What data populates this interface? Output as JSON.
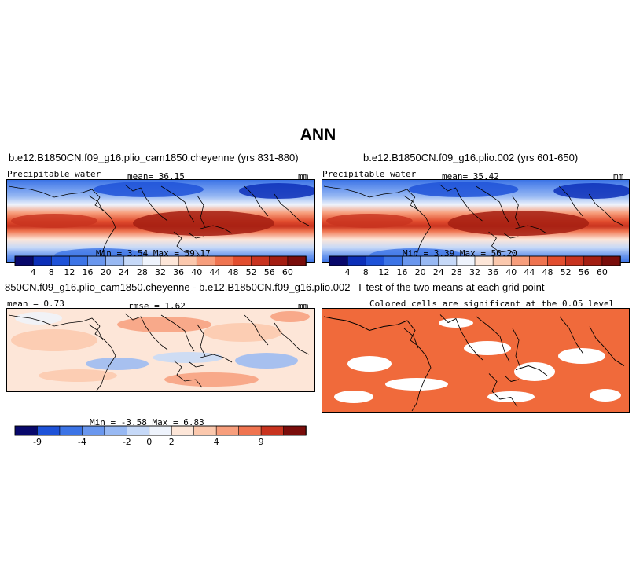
{
  "figure": {
    "title": "ANN"
  },
  "panels": [
    {
      "title": "b.e12.B1850CN.f09_g16.plio_cam1850.cheyenne (yrs 831-880)",
      "left_label": "Precipitable water",
      "center_label": "mean=  36.15",
      "units": "mm",
      "stats": "Min =    3.54  Max =   59.17"
    },
    {
      "title": "b.e12.B1850CN.f09_g16.plio.002 (yrs 601-650)",
      "left_label": "Precipitable water",
      "center_label": "mean=  35.42",
      "units": "mm",
      "stats": "Min =    3.39  Max =   56.20"
    },
    {
      "title": "850CN.f09_g16.plio_cam1850.cheyenne - b.e12.B1850CN.f09_g16.plio.002",
      "left_label": "mean =   0.73",
      "center_label": "rmse =   1.62",
      "units": "mm",
      "stats": "Min =   -3.58  Max =    6.83"
    },
    {
      "title": "T-test of the two means at each grid point",
      "subtitle": "Colored cells are significant at the 0.05 level"
    }
  ],
  "chart_data": [
    {
      "type": "heatmap",
      "title": "b.e12.B1850CN.f09_g16.plio_cam1850.cheyenne (yrs 831-880)",
      "variable": "Precipitable water",
      "units": "mm",
      "mean": 36.15,
      "min": 3.54,
      "max": 59.17,
      "colorbar_levels": [
        "4",
        "8",
        "12",
        "16",
        "20",
        "24",
        "28",
        "32",
        "36",
        "40",
        "44",
        "48",
        "52",
        "56",
        "60"
      ]
    },
    {
      "type": "heatmap",
      "title": "b.e12.B1850CN.f09_g16.plio.002 (yrs 601-650)",
      "variable": "Precipitable water",
      "units": "mm",
      "mean": 35.42,
      "min": 3.39,
      "max": 56.2,
      "colorbar_levels": [
        "4",
        "8",
        "12",
        "16",
        "20",
        "24",
        "28",
        "32",
        "36",
        "40",
        "44",
        "48",
        "52",
        "56",
        "60"
      ]
    },
    {
      "type": "heatmap",
      "title": "850CN.f09_g16.plio_cam1850.cheyenne - b.e12.B1850CN.f09_g16.plio.002",
      "units": "mm",
      "mean": 0.73,
      "rmse": 1.62,
      "min": -3.58,
      "max": 6.83,
      "colorbar_levels": [
        "-9",
        "-4",
        "-2",
        "0",
        "2",
        "4",
        "9"
      ]
    },
    {
      "type": "heatmap",
      "title": "T-test of the two means at each grid point",
      "subtitle": "Colored cells are significant at the 0.05 level",
      "significance_level": 0.05
    }
  ],
  "colorbars": {
    "pw": {
      "colors": [
        "#08086b",
        "#0c2fb8",
        "#1e52d8",
        "#3c74e6",
        "#6a97ee",
        "#98b9f3",
        "#c6d9f8",
        "#eef3fc",
        "#fde6d8",
        "#fbc8ad",
        "#f79e7c",
        "#ef7450",
        "#e24e2f",
        "#c8331f",
        "#a41e12",
        "#7a0d0b"
      ],
      "labels": [
        "4",
        "8",
        "12",
        "16",
        "20",
        "24",
        "28",
        "32",
        "36",
        "40",
        "44",
        "48",
        "52",
        "56",
        "60"
      ]
    },
    "diff": {
      "colors": [
        "#08086b",
        "#1e52d8",
        "#3c74e6",
        "#6a97ee",
        "#98b9f3",
        "#c6d9f8",
        "#eef3fc",
        "#fde6d8",
        "#fbc8ad",
        "#f79e7c",
        "#ef7450",
        "#c8331f",
        "#7a0d0b"
      ],
      "labels": [
        "-9",
        "-4",
        "-2",
        "0",
        "2",
        "4",
        "9"
      ],
      "label_slots": [
        1,
        3,
        5,
        6,
        7,
        9,
        11
      ]
    },
    "ttest_color": "#f06a3b"
  }
}
